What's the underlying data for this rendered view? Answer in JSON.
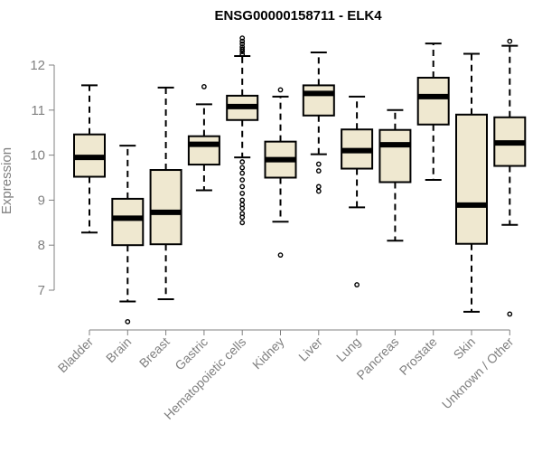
{
  "chart_data": {
    "type": "box",
    "title": "ENSG00000158711 - ELK4",
    "ylabel": "Expression",
    "xlabel": "",
    "ylim": [
      6.1,
      12.8
    ],
    "yticks": [
      7,
      8,
      9,
      10,
      11,
      12
    ],
    "colors": {
      "box_fill": "#efe8d0",
      "stroke": "#000000",
      "axis": "#808080"
    },
    "categories": [
      "Bladder",
      "Brain",
      "Breast",
      "Gastric",
      "Hematopoietic cells",
      "Kidney",
      "Liver",
      "Lung",
      "Pancreas",
      "Prostate",
      "Skin",
      "Unknown / Other"
    ],
    "boxes": [
      {
        "whisker_low": 8.28,
        "q1": 9.52,
        "median": 9.95,
        "q3": 10.46,
        "whisker_high": 11.55,
        "outliers": []
      },
      {
        "whisker_low": 6.75,
        "q1": 8.0,
        "median": 8.6,
        "q3": 9.03,
        "whisker_high": 10.21,
        "outliers": [
          6.3
        ]
      },
      {
        "whisker_low": 6.8,
        "q1": 8.02,
        "median": 8.73,
        "q3": 9.67,
        "whisker_high": 11.5,
        "outliers": []
      },
      {
        "whisker_low": 9.22,
        "q1": 9.79,
        "median": 10.24,
        "q3": 10.42,
        "whisker_high": 11.13,
        "outliers": [
          11.52
        ]
      },
      {
        "whisker_low": 9.95,
        "q1": 10.78,
        "median": 11.08,
        "q3": 11.32,
        "whisker_high": 12.2,
        "outliers": [
          12.6,
          12.53,
          12.47,
          12.4,
          12.35,
          12.3,
          12.24,
          9.85,
          9.72,
          9.6,
          9.45,
          9.3,
          9.15,
          9.0,
          8.9,
          8.82,
          8.7,
          8.62,
          8.5
        ]
      },
      {
        "whisker_low": 8.52,
        "q1": 9.5,
        "median": 9.9,
        "q3": 10.3,
        "whisker_high": 11.3,
        "outliers": [
          11.45,
          7.78
        ]
      },
      {
        "whisker_low": 10.02,
        "q1": 10.88,
        "median": 11.37,
        "q3": 11.55,
        "whisker_high": 12.28,
        "outliers": [
          9.8,
          9.65,
          9.3,
          9.2
        ]
      },
      {
        "whisker_low": 8.84,
        "q1": 9.7,
        "median": 10.1,
        "q3": 10.57,
        "whisker_high": 11.3,
        "outliers": [
          7.12
        ]
      },
      {
        "whisker_low": 8.1,
        "q1": 9.4,
        "median": 10.23,
        "q3": 10.56,
        "whisker_high": 11.0,
        "outliers": []
      },
      {
        "whisker_low": 9.45,
        "q1": 10.68,
        "median": 11.3,
        "q3": 11.72,
        "whisker_high": 12.48,
        "outliers": []
      },
      {
        "whisker_low": 6.52,
        "q1": 8.03,
        "median": 8.89,
        "q3": 10.9,
        "whisker_high": 12.25,
        "outliers": []
      },
      {
        "whisker_low": 8.45,
        "q1": 9.76,
        "median": 10.27,
        "q3": 10.84,
        "whisker_high": 12.43,
        "outliers": [
          12.53,
          6.47
        ]
      }
    ]
  }
}
